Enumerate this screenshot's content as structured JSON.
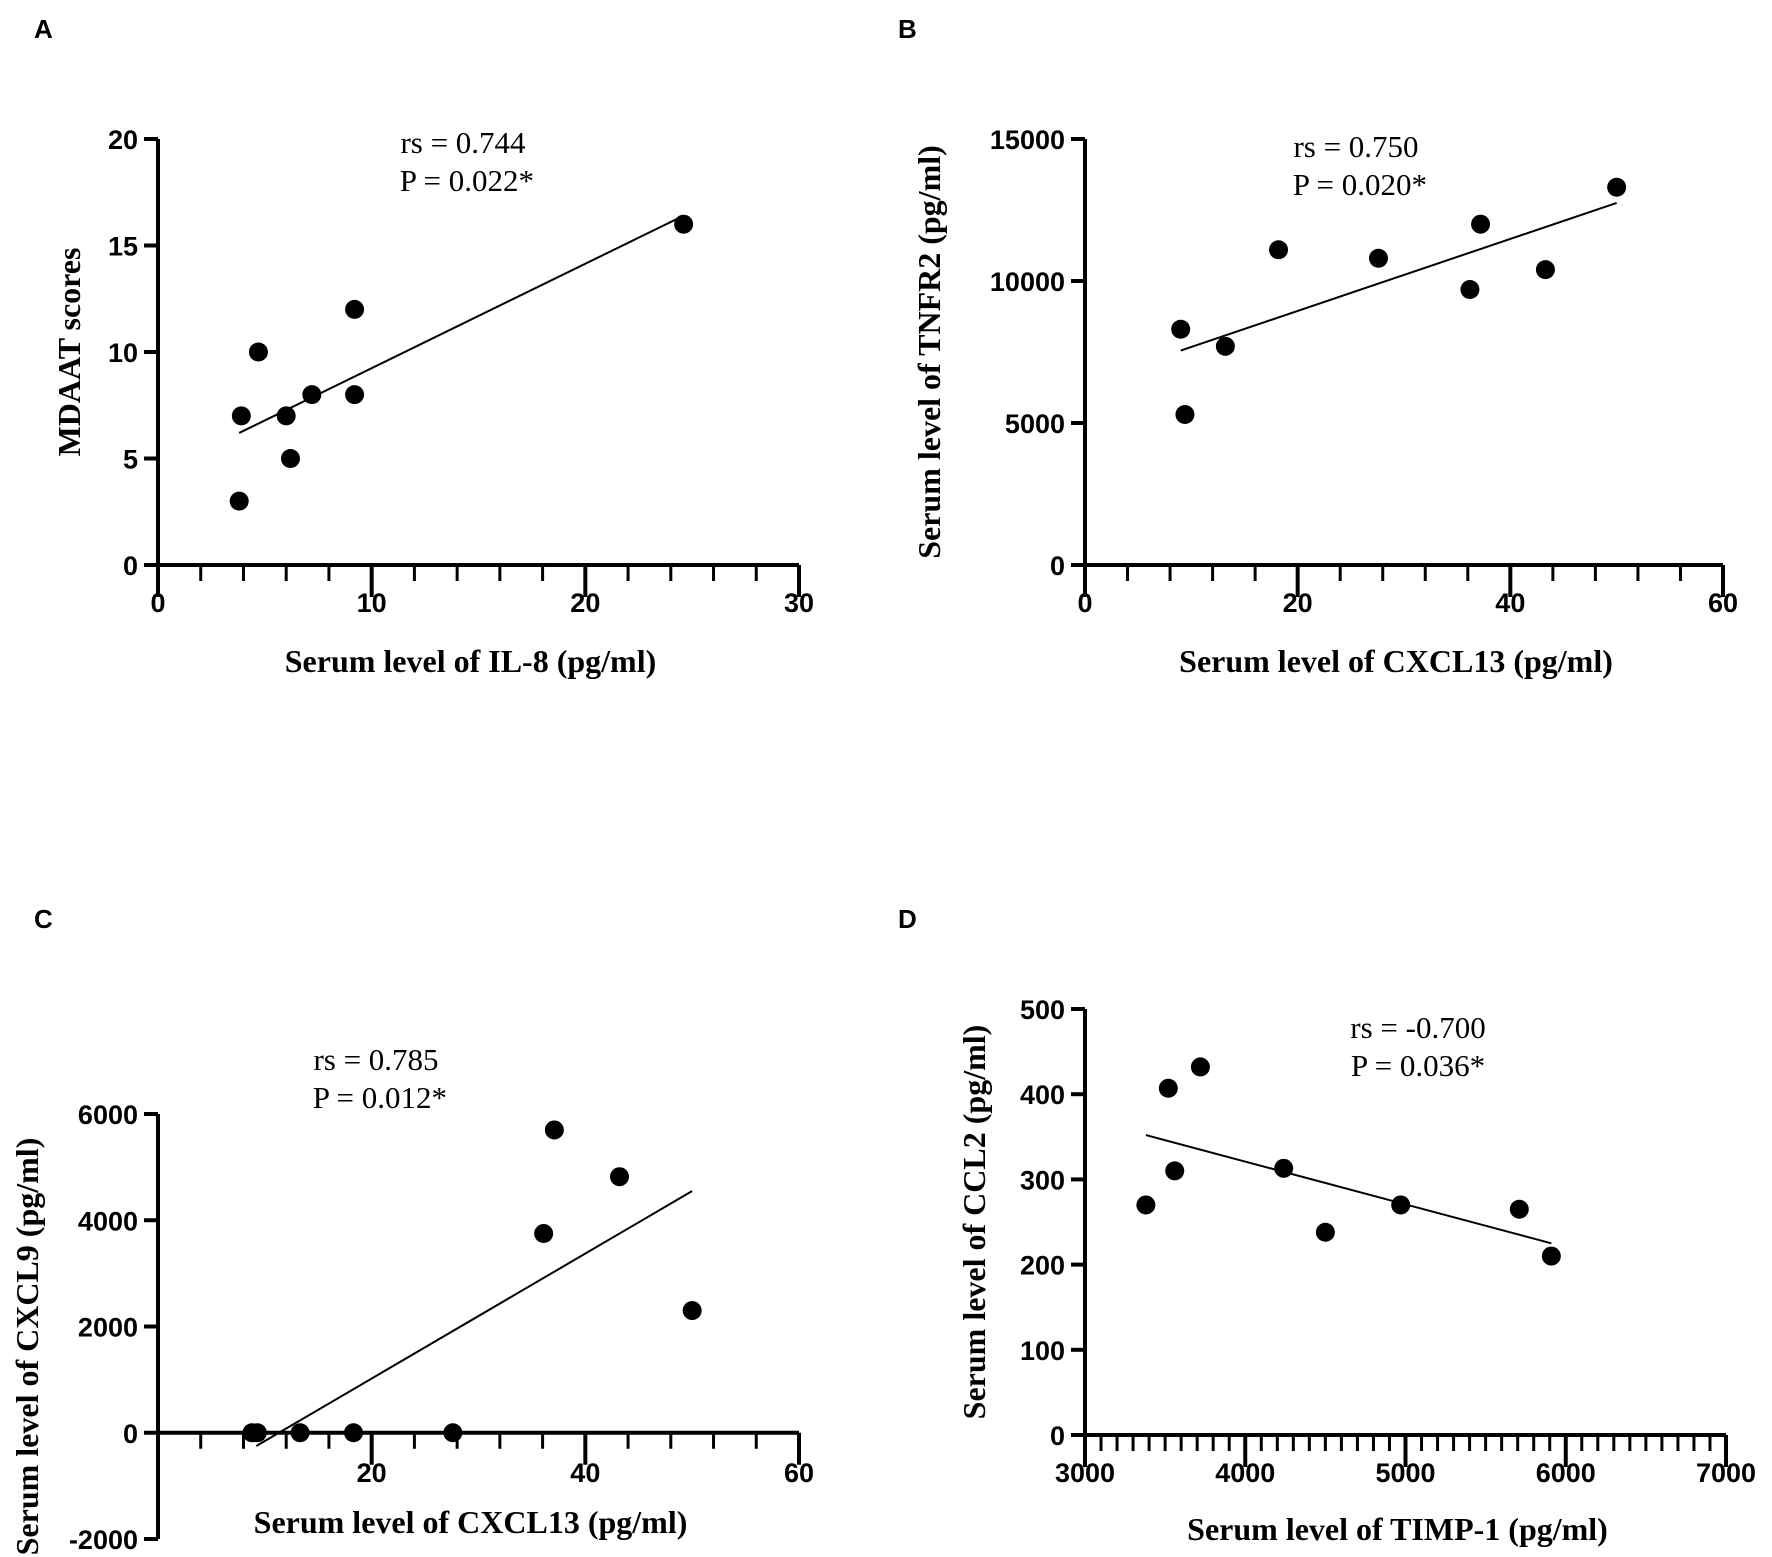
{
  "chart_data": [
    {
      "panel": "A",
      "type": "scatter",
      "xlabel": "Serum level of IL-8 (pg/ml)",
      "ylabel": "MDAAT  scores",
      "xlim": [
        0,
        30
      ],
      "ylim": [
        0,
        20
      ],
      "xticks": [
        0,
        10,
        20,
        30
      ],
      "yticks": [
        0,
        5,
        10,
        15,
        20
      ],
      "xminor": 2,
      "annotation": [
        "rs = 0.744",
        " P = 0.022*"
      ],
      "points": [
        [
          3.8,
          3
        ],
        [
          3.9,
          7
        ],
        [
          4.7,
          10
        ],
        [
          6.0,
          7
        ],
        [
          6.2,
          5
        ],
        [
          7.2,
          8
        ],
        [
          9.2,
          12
        ],
        [
          9.2,
          8
        ],
        [
          24.6,
          16
        ]
      ],
      "fit_line": [
        [
          3.8,
          6.2
        ],
        [
          24.6,
          16.4
        ]
      ]
    },
    {
      "panel": "B",
      "type": "scatter",
      "xlabel": "Serum level of CXCL13 (pg/ml)",
      "ylabel": "Serum level of TNFR2 (pg/ml)",
      "xlim": [
        0,
        60
      ],
      "ylim": [
        0,
        15000
      ],
      "xticks": [
        0,
        20,
        40,
        60
      ],
      "yticks": [
        0,
        5000,
        10000,
        15000
      ],
      "xminor": 4,
      "annotation": [
        "rs = 0.750",
        " P = 0.020*"
      ],
      "points": [
        [
          9.0,
          8300
        ],
        [
          9.4,
          5300
        ],
        [
          13.2,
          7700
        ],
        [
          18.2,
          11100
        ],
        [
          27.6,
          10800
        ],
        [
          36.2,
          9700
        ],
        [
          37.2,
          12000
        ],
        [
          43.3,
          10400
        ],
        [
          50.0,
          13300
        ]
      ],
      "fit_line": [
        [
          9.0,
          7550
        ],
        [
          50.0,
          12750
        ]
      ]
    },
    {
      "panel": "C",
      "type": "scatter",
      "xlabel": "Serum level of CXCL13 (pg/ml)",
      "ylabel": "Serum level of CXCL9 (pg/ml)",
      "xlim": [
        0,
        60
      ],
      "ylim": [
        -2000,
        6000
      ],
      "xticks": [
        20,
        40,
        60
      ],
      "yticks": [
        -2000,
        0,
        2000,
        4000,
        6000
      ],
      "xminor": 4,
      "annotation": [
        "rs = 0.785",
        " P = 0.012*"
      ],
      "points": [
        [
          8.8,
          0
        ],
        [
          9.3,
          0
        ],
        [
          13.3,
          0
        ],
        [
          18.3,
          0
        ],
        [
          27.6,
          0
        ],
        [
          36.1,
          3750
        ],
        [
          37.1,
          5700
        ],
        [
          43.2,
          4820
        ],
        [
          50.0,
          2300
        ]
      ],
      "fit_line": [
        [
          9.2,
          -250
        ],
        [
          50.0,
          4550
        ]
      ]
    },
    {
      "panel": "D",
      "type": "scatter",
      "xlabel": "Serum level of TIMP-1 (pg/ml)",
      "ylabel": "Serum level of CCL2 (pg/ml)",
      "xlim": [
        3000,
        7000
      ],
      "ylim": [
        0,
        500
      ],
      "xticks": [
        3000,
        4000,
        5000,
        6000,
        7000
      ],
      "yticks": [
        0,
        100,
        200,
        300,
        400,
        500
      ],
      "xminor": 100,
      "annotation": [
        "rs = -0.700",
        "P = 0.036*"
      ],
      "points": [
        [
          3380,
          270
        ],
        [
          3520,
          407
        ],
        [
          3560,
          310
        ],
        [
          3720,
          432
        ],
        [
          4240,
          313
        ],
        [
          4500,
          238
        ],
        [
          4970,
          270
        ],
        [
          5710,
          265
        ],
        [
          5910,
          210
        ]
      ],
      "fit_line": [
        [
          3380,
          352
        ],
        [
          5910,
          225
        ]
      ]
    }
  ]
}
